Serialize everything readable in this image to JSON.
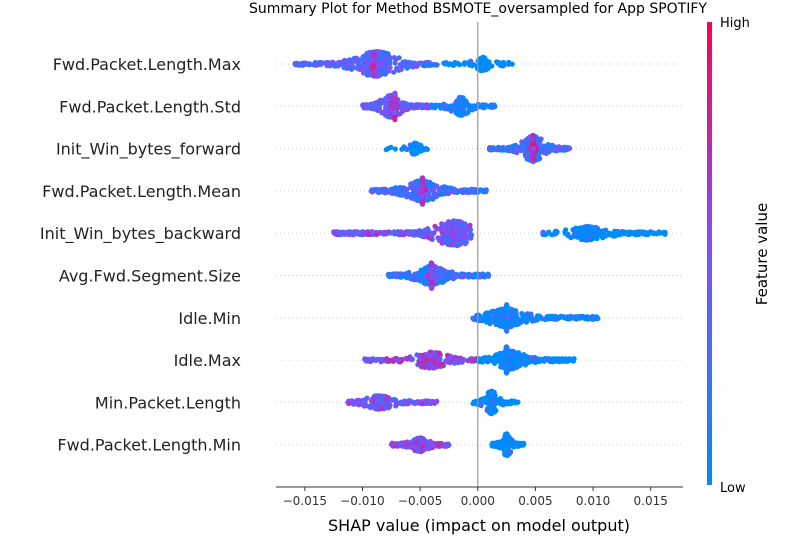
{
  "chart_data": {
    "type": "scatter",
    "title": "Summary Plot for Method BSMOTE_oversampled for App SPOTIFY",
    "xlabel": "SHAP value (impact on model output)",
    "xlim": [
      -0.0175,
      0.0178
    ],
    "xticks": [
      {
        "value": -0.015,
        "label": "−0.015"
      },
      {
        "value": -0.01,
        "label": "−0.010"
      },
      {
        "value": -0.005,
        "label": "−0.005"
      },
      {
        "value": 0.0,
        "label": "0.000"
      },
      {
        "value": 0.005,
        "label": "0.005"
      },
      {
        "value": 0.01,
        "label": "0.010"
      },
      {
        "value": 0.015,
        "label": "0.015"
      }
    ],
    "colorbar": {
      "label": "Feature value",
      "high": "High",
      "low": "Low",
      "low_color": "#008bfb",
      "mid_color": "#7c52ff",
      "high_color": "#ff0052"
    },
    "zero_line_color": "#999999",
    "features": [
      {
        "name": "Fwd.Packet.Length.Max",
        "clusters": [
          {
            "center": -0.0088,
            "min": -0.016,
            "max": -0.0035,
            "count": 520,
            "spread": 0.9,
            "color": 0.3
          },
          {
            "center": -0.009,
            "min": -0.0093,
            "max": -0.0085,
            "count": 160,
            "spread": 0.9,
            "color": 0.6
          },
          {
            "center": 0.0005,
            "min": -0.003,
            "max": 0.003,
            "count": 120,
            "spread": 0.4,
            "color": 0.0
          }
        ]
      },
      {
        "name": "Fwd.Packet.Length.Std",
        "clusters": [
          {
            "center": -0.0075,
            "min": -0.01,
            "max": -0.004,
            "count": 420,
            "spread": 0.8,
            "color": 0.45
          },
          {
            "center": -0.0072,
            "min": -0.0075,
            "max": -0.0069,
            "count": 140,
            "spread": 1.0,
            "color": 0.65
          },
          {
            "center": -0.0015,
            "min": -0.004,
            "max": 0.0015,
            "count": 200,
            "spread": 0.6,
            "color": 0.05
          }
        ]
      },
      {
        "name": "Init_Win_bytes_forward",
        "clusters": [
          {
            "center": -0.0055,
            "min": -0.008,
            "max": -0.004,
            "count": 60,
            "spread": 0.3,
            "color": 0.0
          },
          {
            "center": 0.0048,
            "min": 0.001,
            "max": 0.008,
            "count": 420,
            "spread": 0.9,
            "color": 0.25
          },
          {
            "center": 0.0048,
            "min": 0.0045,
            "max": 0.0051,
            "count": 120,
            "spread": 1.0,
            "color": 0.7
          }
        ]
      },
      {
        "name": "Fwd.Packet.Length.Mean",
        "clusters": [
          {
            "center": -0.0048,
            "min": -0.0093,
            "max": 0.0008,
            "count": 520,
            "spread": 0.7,
            "color": 0.25
          },
          {
            "center": -0.0048,
            "min": -0.0051,
            "max": -0.0045,
            "count": 140,
            "spread": 1.0,
            "color": 0.6
          }
        ]
      },
      {
        "name": "Init_Win_bytes_backward",
        "clusters": [
          {
            "center": -0.002,
            "min": -0.0125,
            "max": -0.0005,
            "count": 520,
            "spread": 0.9,
            "color": 0.45
          },
          {
            "center": 0.0095,
            "min": 0.0055,
            "max": 0.0165,
            "count": 300,
            "spread": 0.4,
            "color": 0.0
          }
        ]
      },
      {
        "name": "Avg.Fwd.Segment.Size",
        "clusters": [
          {
            "center": -0.004,
            "min": -0.0078,
            "max": 0.001,
            "count": 480,
            "spread": 0.6,
            "color": 0.2
          },
          {
            "center": -0.004,
            "min": -0.0043,
            "max": -0.0037,
            "count": 120,
            "spread": 1.0,
            "color": 0.55
          }
        ]
      },
      {
        "name": "Idle.Min",
        "clusters": [
          {
            "center": 0.0025,
            "min": -0.0005,
            "max": 0.0105,
            "count": 520,
            "spread": 0.6,
            "color": 0.05
          },
          {
            "center": 0.0025,
            "min": 0.0022,
            "max": 0.0028,
            "count": 160,
            "spread": 1.0,
            "color": 0.05
          }
        ]
      },
      {
        "name": "Idle.Max",
        "clusters": [
          {
            "center": -0.004,
            "min": -0.0098,
            "max": 0.0,
            "count": 300,
            "spread": 0.5,
            "color": 0.55
          },
          {
            "center": 0.0028,
            "min": 0.0,
            "max": 0.0085,
            "count": 460,
            "spread": 0.6,
            "color": 0.0
          },
          {
            "center": 0.0025,
            "min": 0.0022,
            "max": 0.0028,
            "count": 160,
            "spread": 1.0,
            "color": 0.05
          }
        ]
      },
      {
        "name": "Min.Packet.Length",
        "clusters": [
          {
            "center": -0.0085,
            "min": -0.0113,
            "max": -0.0035,
            "count": 320,
            "spread": 0.4,
            "color": 0.45
          },
          {
            "center": 0.0012,
            "min": -0.0005,
            "max": 0.0035,
            "count": 200,
            "spread": 0.8,
            "color": 0.0
          }
        ]
      },
      {
        "name": "Fwd.Packet.Length.Min",
        "clusters": [
          {
            "center": -0.005,
            "min": -0.0075,
            "max": -0.0025,
            "count": 320,
            "spread": 0.4,
            "color": 0.55
          },
          {
            "center": 0.0025,
            "min": 0.0012,
            "max": 0.004,
            "count": 200,
            "spread": 0.8,
            "color": 0.0
          }
        ]
      }
    ]
  }
}
